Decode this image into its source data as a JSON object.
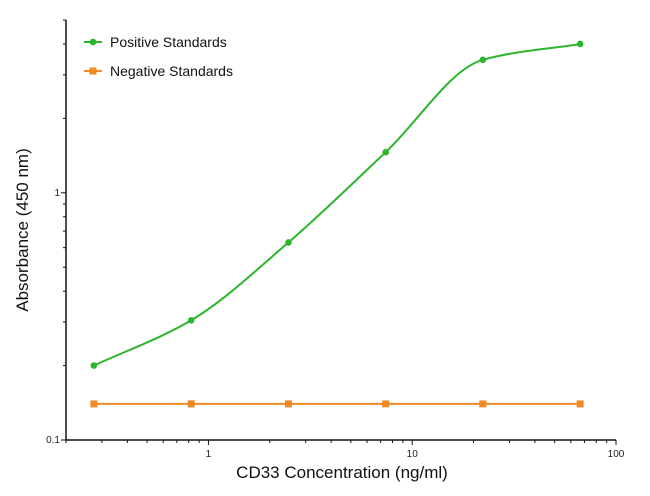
{
  "chart_data": {
    "type": "line",
    "title": "",
    "xlabel": "CD33 Concentration (ng/ml)",
    "ylabel": "Absorbance (450 nm)",
    "xscale": "log",
    "yscale": "log",
    "xlim": [
      0.2,
      100
    ],
    "ylim": [
      0.1,
      5
    ],
    "xticks": [
      "1",
      "10",
      "100"
    ],
    "yticks": [
      "0.1",
      "1"
    ],
    "grid": false,
    "legend_position": "top-left",
    "series": [
      {
        "name": "Positive Standards",
        "color": "#2db52d",
        "marker": "circle",
        "x": [
          0.274,
          0.823,
          2.47,
          7.41,
          22.2,
          66.7
        ],
        "y": [
          0.2,
          0.305,
          0.63,
          1.46,
          3.45,
          4.0
        ]
      },
      {
        "name": "Negative Standards",
        "color": "#f08a24",
        "marker": "square",
        "x": [
          0.274,
          0.823,
          2.47,
          7.41,
          22.2,
          66.7
        ],
        "y": [
          0.14,
          0.14,
          0.14,
          0.14,
          0.14,
          0.14
        ]
      }
    ]
  }
}
